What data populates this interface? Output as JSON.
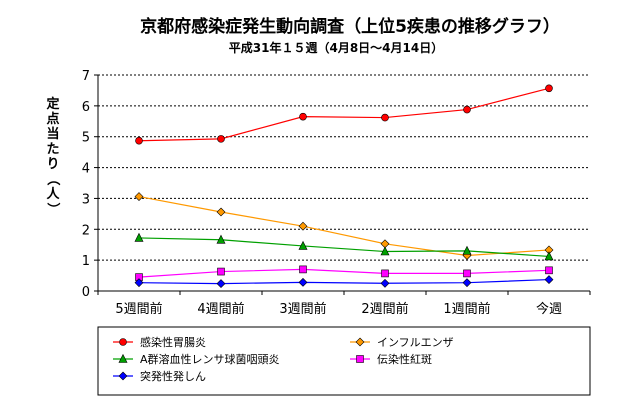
{
  "chart_data": {
    "type": "line",
    "title": "京都府感染症発生動向調査（上位5疾患の推移グラフ）",
    "subtitle": "平成31年１５週（4月8日～4月14日）",
    "ylabel": "定点当たり（人）",
    "xlabel": "",
    "categories": [
      "5週間前",
      "4週間前",
      "3週間前",
      "2週間前",
      "1週間前",
      "今週"
    ],
    "ylim": [
      0,
      7
    ],
    "yticks": [
      0,
      1,
      2,
      3,
      4,
      5,
      6,
      7
    ],
    "grid": true,
    "legend_position": "bottom",
    "series": [
      {
        "name": "感染性胃腸炎",
        "color": "#ff0000",
        "marker": "circle",
        "values": [
          4.87,
          4.93,
          5.65,
          5.62,
          5.88,
          6.57
        ]
      },
      {
        "name": "インフルエンザ",
        "color": "#ff9900",
        "marker": "diamond",
        "values": [
          3.06,
          2.56,
          2.1,
          1.53,
          1.15,
          1.33
        ]
      },
      {
        "name": "A群溶血性レンサ球菌咽頭炎",
        "color": "#00a000",
        "marker": "triangle",
        "values": [
          1.72,
          1.66,
          1.46,
          1.28,
          1.3,
          1.12
        ]
      },
      {
        "name": "伝染性紅斑",
        "color": "#ff00ff",
        "marker": "square",
        "values": [
          0.45,
          0.63,
          0.7,
          0.57,
          0.57,
          0.67
        ]
      },
      {
        "name": "突発性発しん",
        "color": "#0000ff",
        "marker": "diamond",
        "values": [
          0.27,
          0.24,
          0.28,
          0.25,
          0.27,
          0.37
        ]
      }
    ]
  }
}
